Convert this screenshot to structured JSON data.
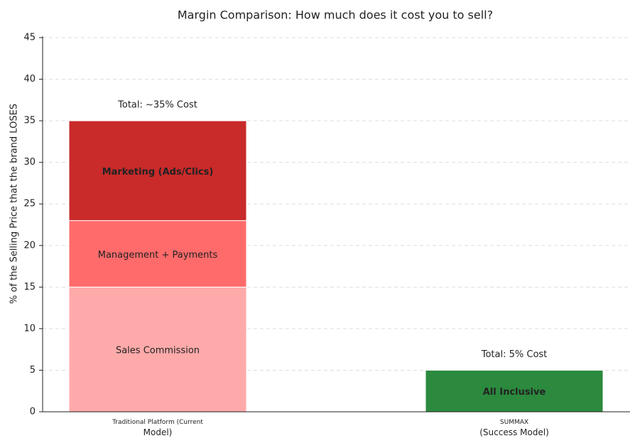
{
  "chart_data": {
    "type": "stacked-bar",
    "title": "Margin Comparison: How much does it cost you to sell?",
    "y_label": "% of the Selling Price that the brand LOSES",
    "categories": [
      "Traditional Platform (Current\nModel)",
      "SUMMAX\n(Success Model)"
    ],
    "series": [
      {
        "name": "Sales Commission",
        "color": "#ffaaaa",
        "values": [
          15,
          null
        ]
      },
      {
        "name": "Management + Payments",
        "color": "#ff6b6b",
        "values": [
          8,
          null
        ]
      },
      {
        "name": "Marketing (Ads/Clics)",
        "color": "#c92a2a",
        "values": [
          12,
          null
        ]
      },
      {
        "name": "All Inclusive",
        "color": "#2b8a3e",
        "values": [
          null,
          5
        ]
      }
    ],
    "annotations": [
      {
        "text": "Total: ~35% Cost",
        "color": "#c92a2a"
      },
      {
        "text": "Total: 5% Cost",
        "color": "#2b8a3e"
      }
    ],
    "ylim": [
      0,
      45
    ],
    "yticks": [
      0,
      5,
      10,
      15,
      20,
      25,
      30,
      35,
      40,
      45
    ],
    "grid": true
  }
}
